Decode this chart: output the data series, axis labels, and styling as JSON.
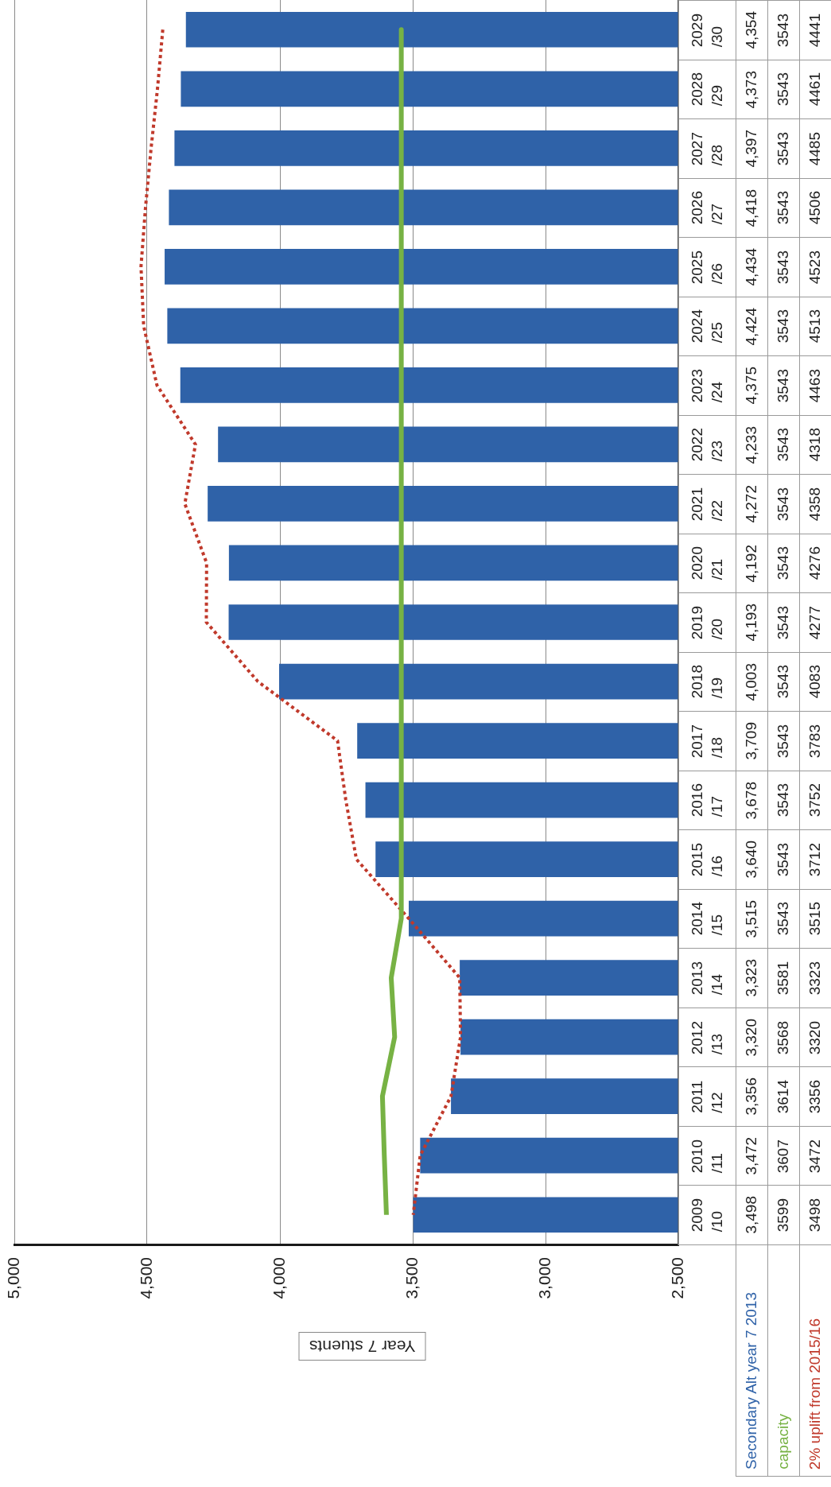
{
  "chart_data": {
    "type": "bar",
    "orientation": "horizontal",
    "xlabel": "Year 7 stuents",
    "categories": [
      "2029/30",
      "2028/29",
      "2027/28",
      "2026/27",
      "2025/26",
      "2024/25",
      "2023/24",
      "2022/23",
      "2021/22",
      "2020/21",
      "2019/20",
      "2018/19",
      "2017/18",
      "2016/17",
      "2015/16",
      "2014/15",
      "2013/14",
      "2012/13",
      "2011/12",
      "2010/11",
      "2009/10"
    ],
    "series": [
      {
        "name": "Secondary Alt year 7 2013",
        "type": "bar",
        "color": "#2f62a8",
        "values": [
          4354,
          4373,
          4397,
          4418,
          4434,
          4424,
          4375,
          4233,
          4272,
          4192,
          4193,
          4003,
          3709,
          3678,
          3640,
          3515,
          3323,
          3320,
          3356,
          3472,
          3498
        ],
        "value_labels": [
          "4,354",
          "4,373",
          "4,397",
          "4,418",
          "4,434",
          "4,424",
          "4,375",
          "4,233",
          "4,272",
          "4,192",
          "4,193",
          "4,003",
          "3,709",
          "3,678",
          "3,640",
          "3,515",
          "3,323",
          "3,320",
          "3,356",
          "3,472",
          "3,498"
        ]
      },
      {
        "name": "capacity",
        "type": "line",
        "line_style": "solid",
        "color": "#77b244",
        "values": [
          3543,
          3543,
          3543,
          3543,
          3543,
          3543,
          3543,
          3543,
          3543,
          3543,
          3543,
          3543,
          3543,
          3543,
          3543,
          3543,
          3581,
          3568,
          3614,
          3607,
          3599
        ],
        "value_labels": [
          "3543",
          "3543",
          "3543",
          "3543",
          "3543",
          "3543",
          "3543",
          "3543",
          "3543",
          "3543",
          "3543",
          "3543",
          "3543",
          "3543",
          "3543",
          "3543",
          "3581",
          "3568",
          "3614",
          "3607",
          "3599"
        ]
      },
      {
        "name": "2% uplift from 2015/16",
        "type": "line",
        "line_style": "dotted",
        "color": "#c0392b",
        "values": [
          4441,
          4461,
          4485,
          4506,
          4523,
          4513,
          4463,
          4318,
          4358,
          4276,
          4277,
          4083,
          3783,
          3752,
          3712,
          3515,
          3323,
          3320,
          3356,
          3472,
          3498
        ],
        "value_labels": [
          "4441",
          "4461",
          "4485",
          "4506",
          "4523",
          "4513",
          "4463",
          "4318",
          "4358",
          "4276",
          "4277",
          "4083",
          "3783",
          "3752",
          "3712",
          "3515",
          "3323",
          "3320",
          "3356",
          "3472",
          "3498"
        ]
      }
    ],
    "xlim": [
      5000,
      2500
    ],
    "xticks": [
      {
        "value": 5000,
        "label": "5,000"
      },
      {
        "value": 4500,
        "label": "4,500"
      },
      {
        "value": 4000,
        "label": "4,000"
      },
      {
        "value": 3500,
        "label": "3,500"
      },
      {
        "value": 3000,
        "label": "3,000"
      },
      {
        "value": 2500,
        "label": "2,500"
      }
    ],
    "grid": "x",
    "marker": "none"
  }
}
